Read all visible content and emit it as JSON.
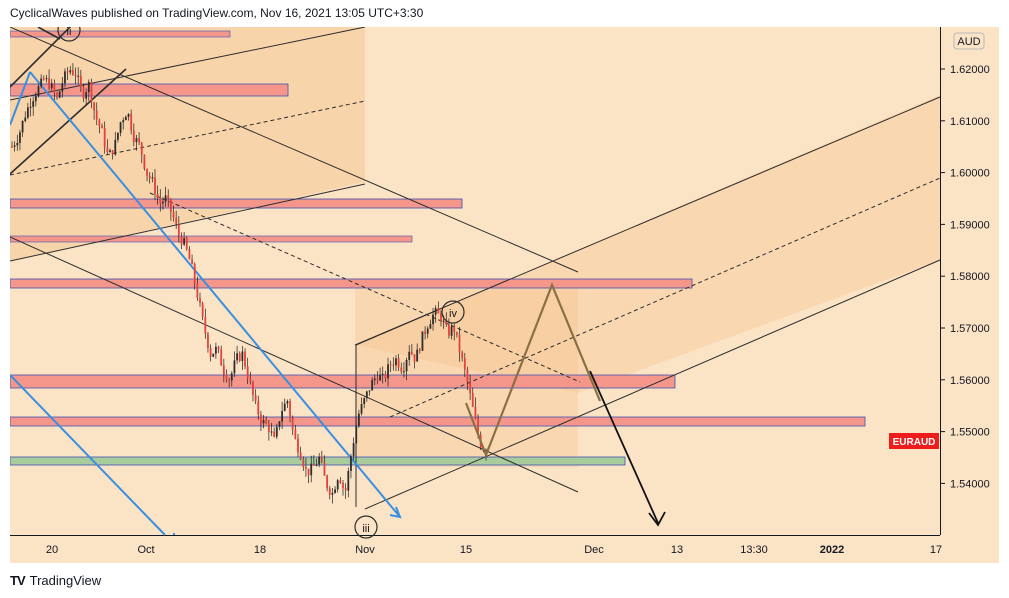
{
  "header": {
    "author": "CyclicalWaves",
    "published_text": "published on TradingView.com, Nov 16, 2021 13:05 UTC+3:30"
  },
  "footer": {
    "brand": "TradingView",
    "logo_icon": "tradingview-logo-icon"
  },
  "chart_data": {
    "type": "candlestick",
    "currency_label": "AUD",
    "symbol_label": "EURAUD",
    "y_ticks": [
      "1.62000",
      "1.61000",
      "1.60000",
      "1.59000",
      "1.58000",
      "1.57000",
      "1.56000",
      "1.55000",
      "1.54000"
    ],
    "x_ticks": [
      "20",
      "Oct",
      "18",
      "Nov",
      "15",
      "Dec",
      "13",
      "13:30",
      "2022",
      "17"
    ],
    "wave_labels": [
      "ii",
      "iv",
      "iii"
    ],
    "colors": {
      "background": "#fbe3c6",
      "channel_fill": "#f7c994",
      "zone_red": "#f4978a",
      "zone_green": "#a8cc9c",
      "candle": "#e4413a",
      "blue_line": "#3a8fe0",
      "projection": "#8a7042",
      "symbol_badge": "#ee1d1d"
    },
    "price_path": [
      1.605,
      1.607,
      1.611,
      1.614,
      1.616,
      1.618,
      1.617,
      1.614,
      1.618,
      1.62,
      1.619,
      1.615,
      1.617,
      1.611,
      1.608,
      1.603,
      1.605,
      1.61,
      1.612,
      1.607,
      1.605,
      1.6,
      1.598,
      1.594,
      1.595,
      1.592,
      1.588,
      1.586,
      1.582,
      1.576,
      1.57,
      1.565,
      1.566,
      1.562,
      1.56,
      1.564,
      1.565,
      1.56,
      1.555,
      1.552,
      1.551,
      1.548,
      1.554,
      1.556,
      1.549,
      1.546,
      1.542,
      1.543,
      1.545,
      1.54,
      1.538,
      1.542,
      1.538,
      1.546,
      1.553,
      1.556,
      1.559,
      1.561,
      1.56,
      1.563,
      1.564,
      1.562,
      1.566,
      1.564,
      1.568,
      1.571,
      1.573,
      1.572,
      1.569,
      1.57,
      1.565,
      1.56,
      1.554,
      1.548,
      1.546
    ],
    "projection_path": [
      [
        1.546
      ],
      [
        1.558
      ],
      [
        1.554
      ],
      [
        1.57
      ],
      [
        1.556
      ],
      [
        1.535
      ]
    ]
  }
}
